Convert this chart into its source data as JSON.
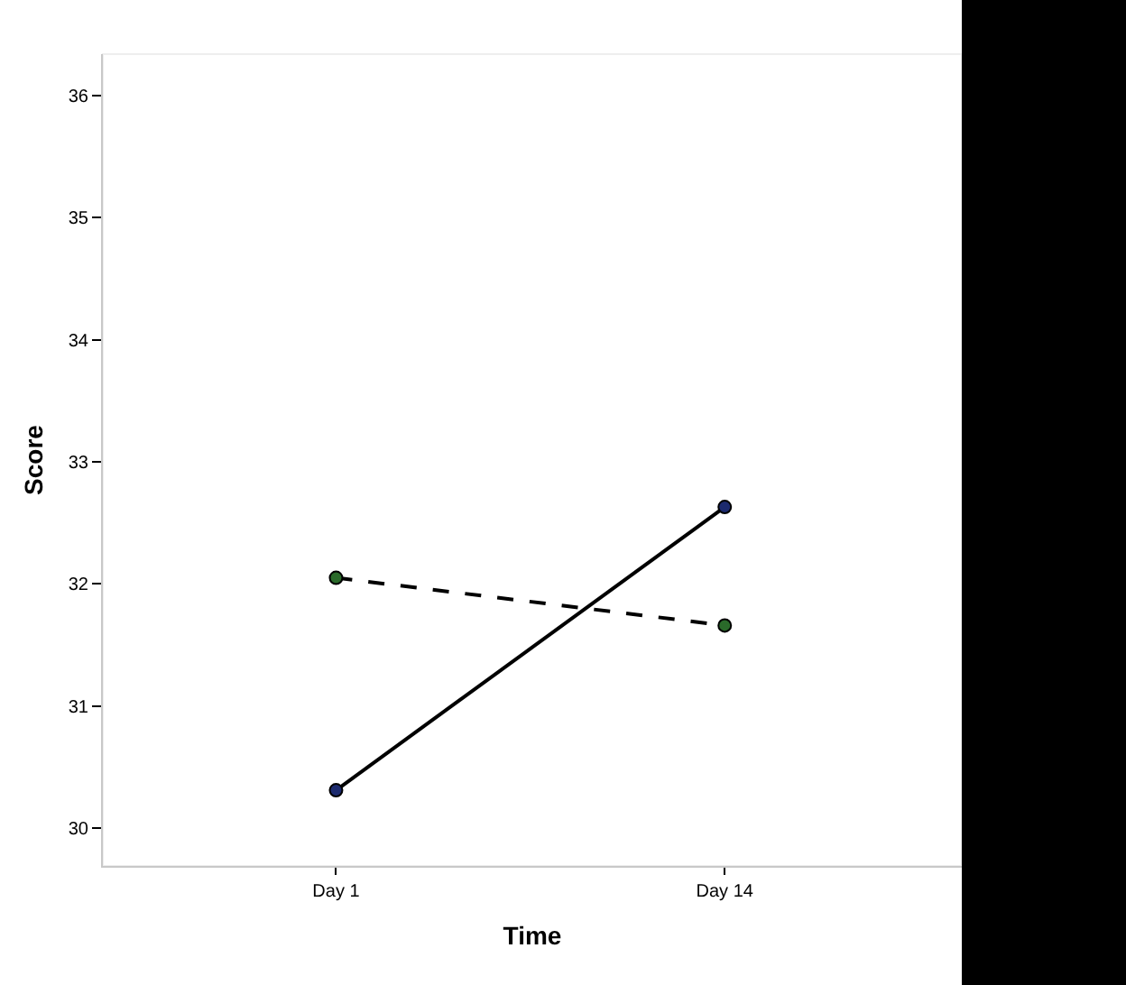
{
  "chart_data": {
    "type": "line",
    "xlabel": "Time",
    "ylabel": "Score",
    "categories": [
      "Day 1",
      "Day 14"
    ],
    "series": [
      {
        "color": "#000000",
        "colors": [
          "#1c2a6e",
          "#1c2a6e"
        ],
        "line_style": "solid",
        "values": [
          30.31,
          32.63
        ]
      },
      {
        "color": "#000000",
        "colors": [
          "#2a6a2a",
          "#2a6a2a"
        ],
        "line_style": "dashed",
        "values": [
          32.05,
          31.66
        ]
      }
    ],
    "ylim": [
      29.69,
      36.34
    ],
    "yticks": [
      30,
      31,
      32,
      33,
      34,
      35,
      36
    ],
    "grid": false,
    "marker": "circle"
  }
}
